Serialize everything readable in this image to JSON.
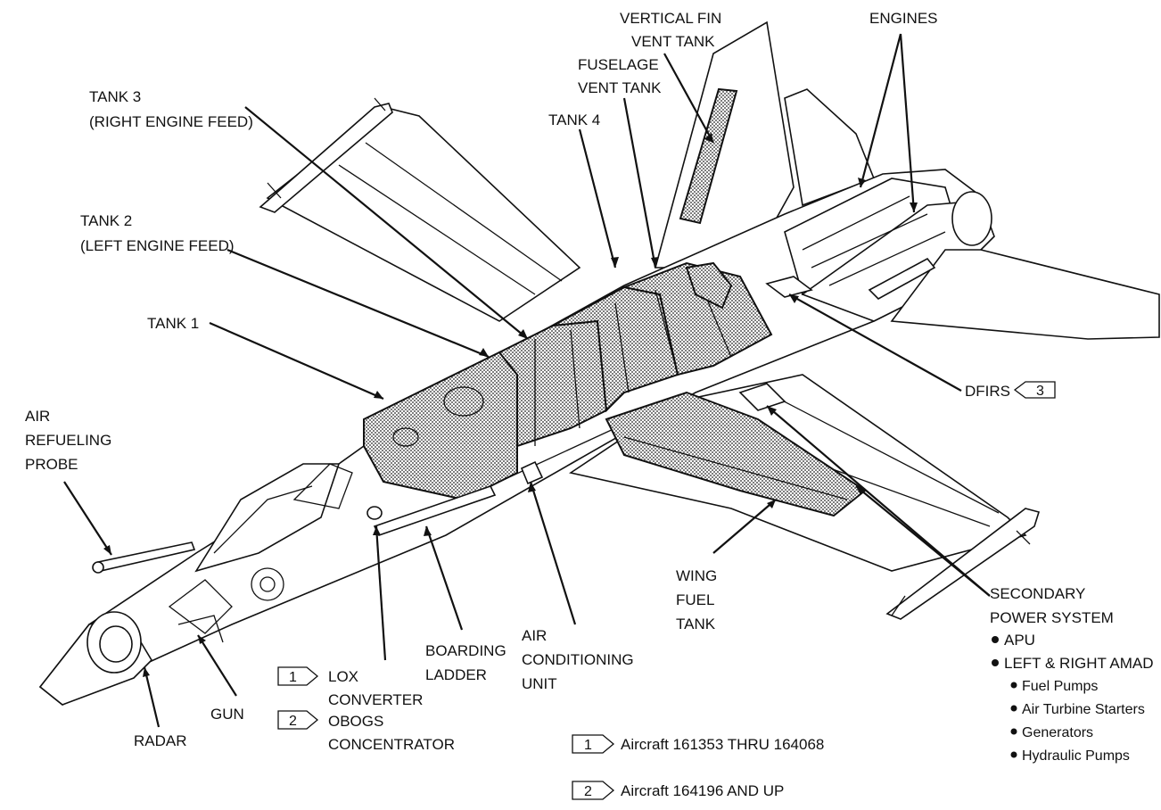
{
  "labels": {
    "vertical_fin_vent_tank": [
      "VERTICAL FIN",
      "VENT TANK"
    ],
    "engines": "ENGINES",
    "fuselage_vent_tank": [
      "FUSELAGE",
      "VENT TANK"
    ],
    "tank3": [
      "TANK 3",
      "(RIGHT ENGINE FEED)"
    ],
    "tank4": "TANK 4",
    "tank2": [
      "TANK 2",
      "(LEFT ENGINE FEED)"
    ],
    "tank1": "TANK 1",
    "dfirs": "DFIRS",
    "dfirs_note": "3",
    "air_refueling_probe": [
      "AIR",
      "REFUELING",
      "PROBE"
    ],
    "secondary_power_system": [
      "SECONDARY",
      "POWER SYSTEM"
    ],
    "sps_items": [
      "APU",
      "LEFT & RIGHT AMAD"
    ],
    "amad_items": [
      "Fuel Pumps",
      "Air Turbine Starters",
      "Generators",
      "Hydraulic Pumps"
    ],
    "wing_fuel_tank": [
      "WING",
      "FUEL",
      "TANK"
    ],
    "boarding_ladder": [
      "BOARDING",
      "LADDER"
    ],
    "air_conditioning_unit": [
      "AIR",
      "CONDITIONING",
      "UNIT"
    ],
    "gun": "GUN",
    "radar": "RADAR",
    "lox_converter": [
      "LOX",
      "CONVERTER"
    ],
    "obogs_concentrator": [
      "OBOGS",
      "CONCENTRATOR"
    ]
  },
  "notes": [
    {
      "num": "1",
      "text": "Aircraft 161353 THRU 164068"
    },
    {
      "num": "2",
      "text": "Aircraft 164196 AND UP"
    }
  ],
  "inline_notes": [
    "1",
    "2"
  ]
}
